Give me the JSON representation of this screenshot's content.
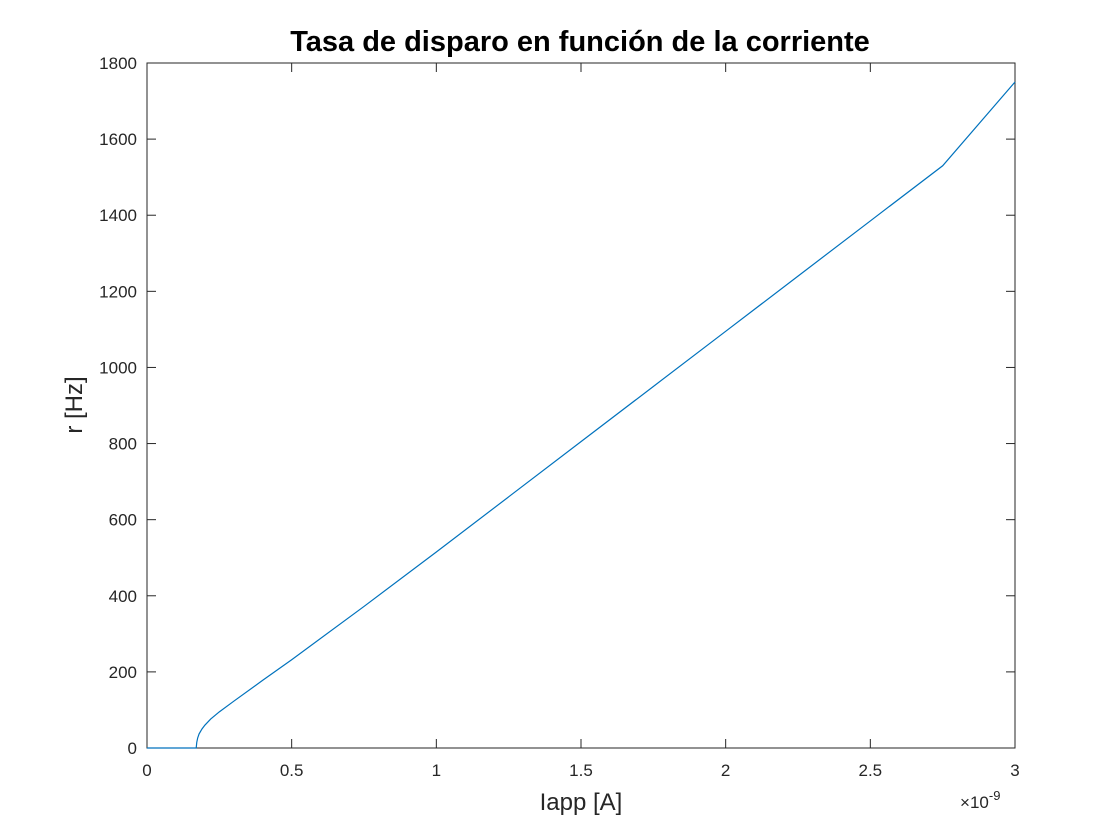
{
  "chart_data": {
    "type": "line",
    "title": "Tasa de disparo en función de la corriente",
    "xlabel": "Iapp [A]",
    "ylabel": "r [Hz]",
    "x_scale_multiplier": "10",
    "x_scale_exponent": "-9",
    "xlim": [
      0,
      3
    ],
    "ylim": [
      0,
      1800
    ],
    "xticks": [
      0,
      0.5,
      1,
      1.5,
      2,
      2.5,
      3
    ],
    "xtick_labels": [
      "0",
      "0.5",
      "1",
      "1.5",
      "2",
      "2.5",
      "3"
    ],
    "yticks": [
      0,
      200,
      400,
      600,
      800,
      1000,
      1200,
      1400,
      1600,
      1800
    ],
    "ytick_labels": [
      "0",
      "200",
      "400",
      "600",
      "800",
      "1000",
      "1200",
      "1400",
      "1600",
      "1800"
    ],
    "grid": false,
    "line_color": "#0072BD",
    "series": [
      {
        "x": [
          0,
          0.05,
          0.1,
          0.15,
          0.16,
          0.165,
          0.17,
          0.172,
          0.175,
          0.18,
          0.19,
          0.2,
          0.22,
          0.25,
          0.3,
          0.4,
          0.5,
          0.75,
          1.0,
          1.25,
          1.5,
          1.75,
          2.0,
          2.25,
          2.5,
          2.75,
          3.0
        ],
        "values": [
          0,
          0,
          0,
          0,
          0,
          0,
          0,
          15,
          26,
          37,
          50,
          60,
          76,
          95,
          123,
          178,
          232,
          372,
          515,
          660,
          805,
          950,
          1095,
          1240,
          1385,
          1530,
          1750
        ]
      }
    ]
  }
}
